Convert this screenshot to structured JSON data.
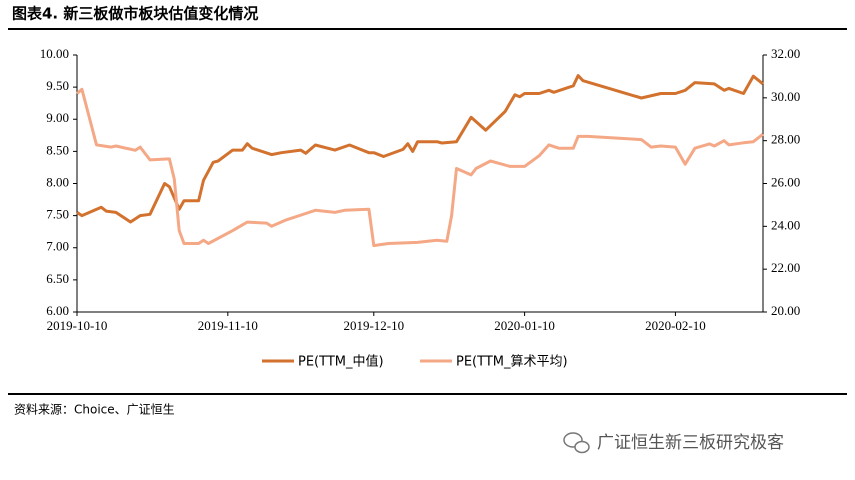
{
  "header": {
    "title": "图表4. 新三板做市板块估值变化情况"
  },
  "chart_data": {
    "type": "line",
    "xlim": [
      "2019-10-10",
      "2020-02-28"
    ],
    "xticks": [
      "2019-10-10",
      "2019-11-10",
      "2019-12-10",
      "2020-01-10",
      "2020-02-10"
    ],
    "ylim": [
      6,
      10
    ],
    "yticks": [
      {
        "value": 6,
        "label": "6.00"
      },
      {
        "value": 6.5,
        "label": "6.50"
      },
      {
        "value": 7,
        "label": "7.00"
      },
      {
        "value": 7.5,
        "label": "7.50"
      },
      {
        "value": 8,
        "label": "8.00"
      },
      {
        "value": 8.5,
        "label": "8.50"
      },
      {
        "value": 9,
        "label": "9.00"
      },
      {
        "value": 9.5,
        "label": "9.50"
      },
      {
        "value": 10,
        "label": "10.00"
      }
    ],
    "y2lim": [
      20,
      32
    ],
    "y2ticks": [
      {
        "value": 20,
        "label": "20.00"
      },
      {
        "value": 22,
        "label": "22.00"
      },
      {
        "value": 24,
        "label": "24.00"
      },
      {
        "value": 26,
        "label": "26.00"
      },
      {
        "value": 28,
        "label": "28.00"
      },
      {
        "value": 30,
        "label": "30.00"
      },
      {
        "value": 32,
        "label": "32.00"
      }
    ],
    "series": [
      {
        "name": "PE(TTM_中值)",
        "color": "#d2722e",
        "x": [
          "2019-10-10",
          "2019-10-11",
          "2019-10-15",
          "2019-10-16",
          "2019-10-18",
          "2019-10-21",
          "2019-10-23",
          "2019-10-25",
          "2019-10-28",
          "2019-10-29",
          "2019-10-31",
          "2019-11-01",
          "2019-11-04",
          "2019-11-05",
          "2019-11-07",
          "2019-11-08",
          "2019-11-11",
          "2019-11-13",
          "2019-11-14",
          "2019-11-15",
          "2019-11-19",
          "2019-11-21",
          "2019-11-25",
          "2019-11-26",
          "2019-11-28",
          "2019-12-02",
          "2019-12-05",
          "2019-12-09",
          "2019-12-10",
          "2019-12-12",
          "2019-12-16",
          "2019-12-17",
          "2019-12-18",
          "2019-12-19",
          "2019-12-23",
          "2019-12-24",
          "2019-12-27",
          "2019-12-30",
          "2020-01-02",
          "2020-01-06",
          "2020-01-08",
          "2020-01-09",
          "2020-01-10",
          "2020-01-13",
          "2020-01-15",
          "2020-01-16",
          "2020-01-20",
          "2020-01-21",
          "2020-01-22",
          "2020-02-03",
          "2020-02-07",
          "2020-02-10",
          "2020-02-12",
          "2020-02-14",
          "2020-02-18",
          "2020-02-20",
          "2020-02-21",
          "2020-02-24",
          "2020-02-26",
          "2020-02-28"
        ],
        "values": [
          7.55,
          7.5,
          7.63,
          7.57,
          7.55,
          7.4,
          7.5,
          7.52,
          8.0,
          7.95,
          7.6,
          7.73,
          7.73,
          8.05,
          8.33,
          8.35,
          8.52,
          8.52,
          8.62,
          8.55,
          8.45,
          8.48,
          8.52,
          8.47,
          8.6,
          8.52,
          8.6,
          8.48,
          8.48,
          8.42,
          8.53,
          8.62,
          8.5,
          8.65,
          8.65,
          8.63,
          8.65,
          9.03,
          8.83,
          9.12,
          9.38,
          9.35,
          9.4,
          9.4,
          9.45,
          9.42,
          9.52,
          9.68,
          9.6,
          9.33,
          9.4,
          9.4,
          9.45,
          9.57,
          9.55,
          9.45,
          9.48,
          9.4,
          9.67,
          9.55
        ]
      },
      {
        "name": "PE(TTM_算术平均)",
        "color": "#f4a886",
        "axis": "y2",
        "x": [
          "2019-10-10",
          "2019-10-11",
          "2019-10-14",
          "2019-10-17",
          "2019-10-18",
          "2019-10-22",
          "2019-10-23",
          "2019-10-25",
          "2019-10-29",
          "2019-10-30",
          "2019-10-31",
          "2019-11-01",
          "2019-11-04",
          "2019-11-05",
          "2019-11-06",
          "2019-11-11",
          "2019-11-14",
          "2019-11-18",
          "2019-11-19",
          "2019-11-22",
          "2019-11-26",
          "2019-11-28",
          "2019-12-02",
          "2019-12-04",
          "2019-12-09",
          "2019-12-10",
          "2019-12-13",
          "2019-12-19",
          "2019-12-23",
          "2019-12-25",
          "2019-12-26",
          "2019-12-27",
          "2019-12-30",
          "2019-12-31",
          "2020-01-03",
          "2020-01-07",
          "2020-01-10",
          "2020-01-13",
          "2020-01-15",
          "2020-01-17",
          "2020-01-20",
          "2020-01-21",
          "2020-01-23",
          "2020-02-03",
          "2020-02-05",
          "2020-02-07",
          "2020-02-10",
          "2020-02-12",
          "2020-02-14",
          "2020-02-17",
          "2020-02-18",
          "2020-02-20",
          "2020-02-21",
          "2020-02-24",
          "2020-02-26",
          "2020-02-28"
        ],
        "values": [
          30.2,
          30.4,
          27.8,
          27.7,
          27.75,
          27.55,
          27.7,
          27.1,
          27.15,
          26.2,
          23.8,
          23.2,
          23.2,
          23.35,
          23.2,
          23.8,
          24.2,
          24.15,
          24.0,
          24.3,
          24.6,
          24.75,
          24.65,
          24.75,
          24.8,
          23.1,
          23.2,
          23.25,
          23.35,
          23.3,
          24.5,
          26.7,
          26.4,
          26.7,
          27.05,
          26.8,
          26.8,
          27.3,
          27.8,
          27.65,
          27.65,
          28.2,
          28.2,
          28.05,
          27.7,
          27.75,
          27.7,
          26.9,
          27.65,
          27.85,
          27.75,
          28.0,
          27.8,
          27.9,
          27.95,
          28.3
        ]
      }
    ]
  },
  "footer": {
    "source": "资料来源：Choice、广证恒生",
    "watermark": "广证恒生新三板研究极客"
  }
}
